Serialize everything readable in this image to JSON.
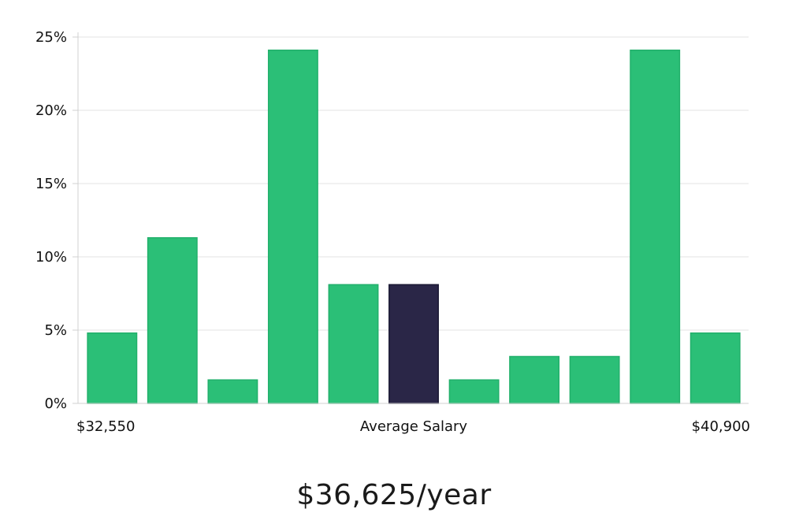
{
  "chart_data": {
    "type": "bar",
    "yticks": [
      "0%",
      "5%",
      "10%",
      "15%",
      "20%",
      "25%"
    ],
    "ylim": [
      0,
      25
    ],
    "values": [
      4.8,
      11.3,
      1.6,
      24.1,
      8.1,
      8.1,
      1.6,
      3.2,
      3.2,
      24.1,
      4.8
    ],
    "highlight_index": 5,
    "x_min_label": "$32,550",
    "x_center_label": "Average Salary",
    "x_max_label": "$40,900",
    "grid": true,
    "colors": {
      "bar": "#2bbf77",
      "bar_stroke": "#22b06b",
      "highlight": "#2a2647",
      "highlight_stroke": "#1a1833",
      "grid": "#e3e3e3",
      "axis": "#d0d0d0"
    }
  },
  "salary": "$36,625/year"
}
